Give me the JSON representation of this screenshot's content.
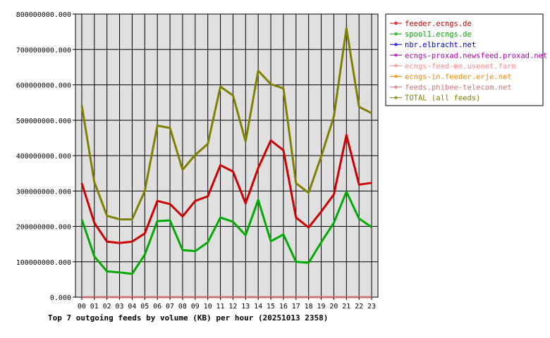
{
  "chart_data": {
    "type": "line",
    "title": "Top 7 outgoing feeds by volume (KB) per hour (20251013 2358)",
    "xlabel": "",
    "ylabel": "",
    "categories": [
      "00",
      "01",
      "02",
      "03",
      "04",
      "05",
      "06",
      "07",
      "08",
      "09",
      "10",
      "11",
      "12",
      "13",
      "14",
      "15",
      "16",
      "17",
      "18",
      "19",
      "20",
      "21",
      "22",
      "23"
    ],
    "ylim": [
      0,
      800000000
    ],
    "yticks": [
      0,
      100000000,
      200000000,
      300000000,
      400000000,
      500000000,
      600000000,
      700000000,
      800000000
    ],
    "ytick_labels": [
      "0.000",
      "100000000.000",
      "200000000.000",
      "300000000.000",
      "400000000.000",
      "500000000.000",
      "600000000.000",
      "700000000.000",
      "800000000.000"
    ],
    "grid": true,
    "legend_position": "right",
    "series": [
      {
        "name": "feeder.ecngs.de",
        "color": "#cc0000",
        "values": [
          322000000,
          210000000,
          157000000,
          153000000,
          157000000,
          180000000,
          272000000,
          263000000,
          228000000,
          272000000,
          285000000,
          373000000,
          355000000,
          265000000,
          365000000,
          443000000,
          415000000,
          225000000,
          197000000,
          242000000,
          290000000,
          458000000,
          318000000,
          323000000
        ]
      },
      {
        "name": "spool1.ecngs.de",
        "color": "#00aa00",
        "values": [
          220000000,
          115000000,
          73000000,
          70000000,
          66000000,
          120000000,
          215000000,
          217000000,
          133000000,
          130000000,
          155000000,
          225000000,
          213000000,
          175000000,
          275000000,
          158000000,
          177000000,
          100000000,
          97000000,
          155000000,
          210000000,
          298000000,
          222000000,
          198000000
        ]
      },
      {
        "name": "nbr.elbracht.net",
        "color": "#0000cc",
        "values": [
          0,
          0,
          0,
          0,
          0,
          0,
          0,
          0,
          0,
          0,
          0,
          0,
          0,
          0,
          0,
          0,
          0,
          0,
          0,
          0,
          0,
          0,
          0,
          0
        ]
      },
      {
        "name": "ecngs-proxad.newsfeed.proxad.net",
        "color": "#aa00aa",
        "values": [
          0,
          0,
          0,
          0,
          0,
          0,
          0,
          0,
          0,
          0,
          0,
          0,
          0,
          0,
          0,
          0,
          0,
          0,
          0,
          0,
          0,
          0,
          0,
          0
        ]
      },
      {
        "name": "ecngs-feed-me.usenet.farm",
        "color": "#ff8888",
        "values": [
          0,
          0,
          0,
          0,
          0,
          0,
          0,
          0,
          0,
          0,
          0,
          0,
          0,
          0,
          0,
          0,
          0,
          0,
          0,
          0,
          0,
          0,
          0,
          0
        ]
      },
      {
        "name": "ecngs-in.feeder.erje.net",
        "color": "#ee8800",
        "values": [
          0,
          0,
          0,
          0,
          0,
          0,
          0,
          0,
          0,
          0,
          0,
          0,
          0,
          0,
          0,
          0,
          0,
          0,
          0,
          0,
          0,
          0,
          0,
          0
        ]
      },
      {
        "name": "feeds.phibee-telecom.net",
        "color": "#cc7777",
        "values": [
          0,
          0,
          0,
          0,
          0,
          0,
          0,
          0,
          0,
          0,
          0,
          0,
          0,
          0,
          0,
          0,
          0,
          0,
          0,
          0,
          0,
          0,
          0,
          0
        ]
      },
      {
        "name": "TOTAL (all feeds)",
        "color": "#808000",
        "values": [
          542000000,
          325000000,
          230000000,
          220000000,
          220000000,
          300000000,
          485000000,
          478000000,
          360000000,
          402000000,
          433000000,
          595000000,
          570000000,
          440000000,
          640000000,
          602000000,
          590000000,
          322000000,
          295000000,
          398000000,
          510000000,
          760000000,
          538000000,
          520000000
        ]
      }
    ]
  }
}
